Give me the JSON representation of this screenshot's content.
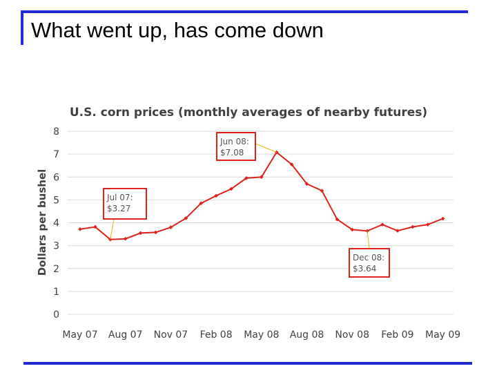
{
  "slide": {
    "title": "What went up, has come down"
  },
  "chart_data": {
    "type": "line",
    "title": "U.S. corn prices (monthly averages of nearby futures)",
    "xlabel": "",
    "ylabel": "Dollars per bushel",
    "ylim": [
      0,
      8
    ],
    "yticks": [
      0,
      1,
      2,
      3,
      4,
      5,
      6,
      7,
      8
    ],
    "grid": true,
    "x_tick_labels": [
      "May 07",
      "Aug 07",
      "Nov 07",
      "Feb 08",
      "May 08",
      "Aug 08",
      "Nov 08",
      "Feb 09",
      "May 09"
    ],
    "x": [
      "May 07",
      "Jun 07",
      "Jul 07",
      "Aug 07",
      "Sep 07",
      "Oct 07",
      "Nov 07",
      "Dec 07",
      "Jan 08",
      "Feb 08",
      "Mar 08",
      "Apr 08",
      "May 08",
      "Jun 08",
      "Jul 08",
      "Aug 08",
      "Sep 08",
      "Oct 08",
      "Nov 08",
      "Dec 08",
      "Jan 09",
      "Feb 09",
      "Mar 09",
      "Apr 09",
      "May 09"
    ],
    "series": [
      {
        "color": "#e0201b",
        "values": [
          3.72,
          3.82,
          3.27,
          3.3,
          3.55,
          3.58,
          3.8,
          4.2,
          4.85,
          5.18,
          5.48,
          5.95,
          6.0,
          7.08,
          6.55,
          5.7,
          5.4,
          4.15,
          3.7,
          3.64,
          3.92,
          3.65,
          3.82,
          3.92,
          4.18
        ]
      }
    ],
    "annotations": [
      {
        "line1": "Jul 07:",
        "line2": "$3.27",
        "target_index": 2
      },
      {
        "line1": "Jun 08:",
        "line2": "$7.08",
        "target_index": 13
      },
      {
        "line1": "Dec 08:",
        "line2": "$3.64",
        "target_index": 19
      }
    ],
    "colors": {
      "line": "#e0201b",
      "callout_border": "#e0201b",
      "leader": "#e8b800",
      "grid": "#d9d9d9",
      "text": "#404040"
    }
  }
}
